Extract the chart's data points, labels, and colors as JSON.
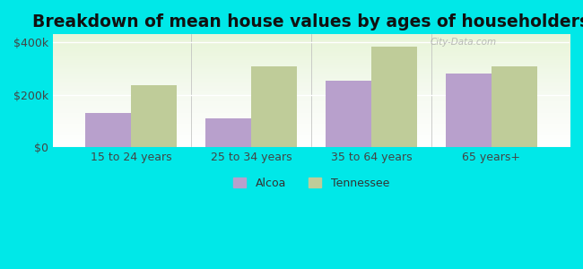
{
  "categories": [
    "15 to 24 years",
    "25 to 34 years",
    "35 to 64 years",
    "65 years+"
  ],
  "alcoa_values": [
    130000,
    110000,
    255000,
    280000
  ],
  "tennessee_values": [
    238000,
    308000,
    385000,
    308000
  ],
  "alcoa_color": "#b8a0cc",
  "tennessee_color": "#bfcc99",
  "background_color": "#00e8e8",
  "title": "Breakdown of mean house values by ages of householders",
  "title_fontsize": 13.5,
  "ytick_labels": [
    "$0",
    "$200k",
    "$400k"
  ],
  "ytick_values": [
    0,
    200000,
    400000
  ],
  "ylim": [
    0,
    430000
  ],
  "bar_width": 0.38,
  "legend_labels": [
    "Alcoa",
    "Tennessee"
  ],
  "watermark": "City-Data.com"
}
